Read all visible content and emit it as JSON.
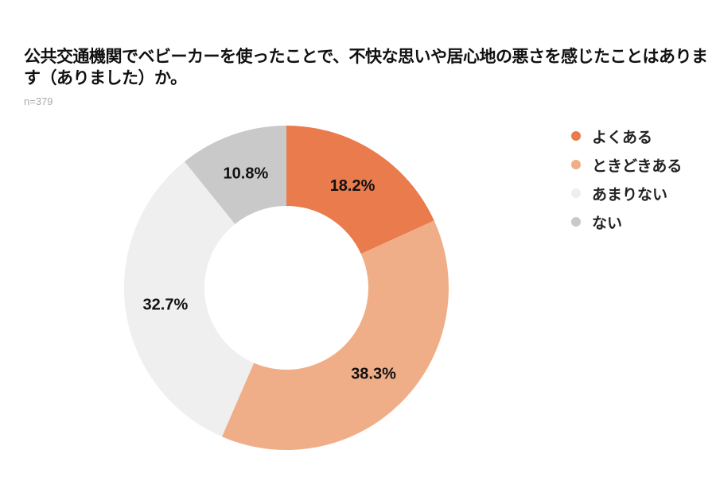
{
  "chart_data": {
    "type": "pie",
    "variant": "donut",
    "title": "公共交通機関でベビーカーを使ったことで、不快な思いや居心地の悪さを感じたことはあります（ありました）か。",
    "subtitle": "n=379",
    "categories": [
      "よくある",
      "ときどきある",
      "あまりない",
      "ない"
    ],
    "values": [
      18.2,
      38.3,
      32.7,
      10.8
    ],
    "labels": [
      "18.2%",
      "38.3%",
      "32.7%",
      "10.8%"
    ],
    "colors": [
      "#E97B4D",
      "#F0AE88",
      "#EFEFEF",
      "#C9C9C9"
    ],
    "legend_position": "right"
  }
}
